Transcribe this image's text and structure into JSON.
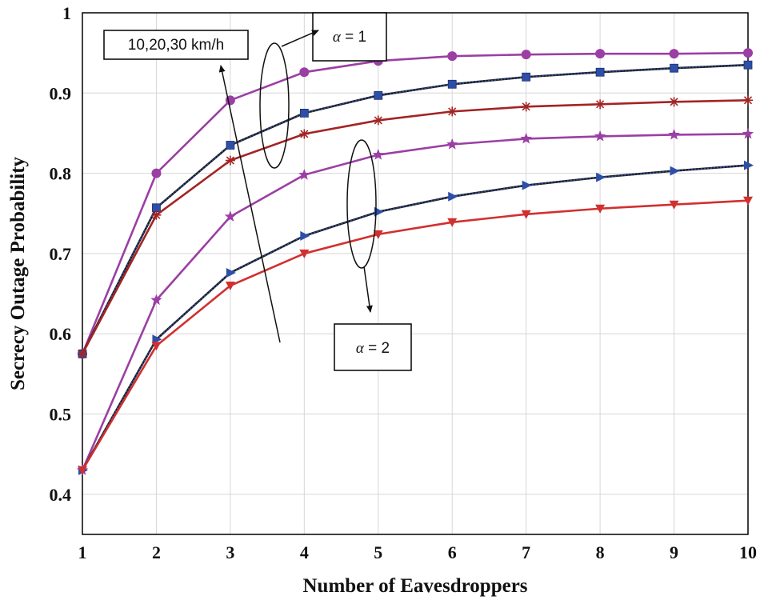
{
  "chart_data": {
    "type": "line",
    "title": "",
    "xlabel": "Number of Eavesdroppers",
    "ylabel": "Secrecy Outage Probability",
    "xlim": [
      1,
      10
    ],
    "ylim": [
      0.35,
      1.0
    ],
    "xticks": [
      1,
      2,
      3,
      4,
      5,
      6,
      7,
      8,
      9,
      10
    ],
    "yticks": [
      0.4,
      0.5,
      0.6,
      0.7,
      0.8,
      0.9,
      1.0
    ],
    "xtick_labels": [
      "1",
      "2",
      "3",
      "4",
      "5",
      "6",
      "7",
      "8",
      "9",
      "10"
    ],
    "ytick_labels": [
      "0.4",
      "0.5",
      "0.6",
      "0.7",
      "0.8",
      "0.9",
      "1"
    ],
    "grid": true,
    "x": [
      1,
      2,
      3,
      4,
      5,
      6,
      7,
      8,
      9,
      10
    ],
    "series": [
      {
        "values": [
          0.575,
          0.8,
          0.891,
          0.926,
          0.94,
          0.946,
          0.948,
          0.949,
          0.949,
          0.95
        ],
        "color": "#9b3fa4",
        "marker": "circle",
        "line": "solid"
      },
      {
        "values": [
          0.575,
          0.757,
          0.835,
          0.875,
          0.897,
          0.911,
          0.92,
          0.926,
          0.931,
          0.935
        ],
        "color": "#2e4fa8",
        "marker": "square",
        "line": "dotted"
      },
      {
        "values": [
          0.575,
          0.748,
          0.816,
          0.849,
          0.866,
          0.877,
          0.883,
          0.886,
          0.889,
          0.891
        ],
        "color": "#a32424",
        "marker": "asterisk",
        "line": "solid"
      },
      {
        "values": [
          0.43,
          0.642,
          0.746,
          0.798,
          0.823,
          0.836,
          0.843,
          0.846,
          0.848,
          0.849
        ],
        "color": "#9b3fa4",
        "marker": "star",
        "line": "solid"
      },
      {
        "values": [
          0.43,
          0.593,
          0.676,
          0.722,
          0.752,
          0.771,
          0.785,
          0.795,
          0.803,
          0.81
        ],
        "color": "#2e4fa8",
        "marker": "triangle-right",
        "line": "dotted"
      },
      {
        "values": [
          0.43,
          0.585,
          0.66,
          0.7,
          0.724,
          0.739,
          0.749,
          0.756,
          0.761,
          0.766
        ],
        "color": "#d13030",
        "marker": "triangle-down",
        "line": "solid"
      }
    ],
    "annotations": {
      "speed": "10,20,30 km/h",
      "alpha1_symbol": "α",
      "alpha1_value": " = 1",
      "alpha2_symbol": "α",
      "alpha2_value": " = 2"
    }
  }
}
